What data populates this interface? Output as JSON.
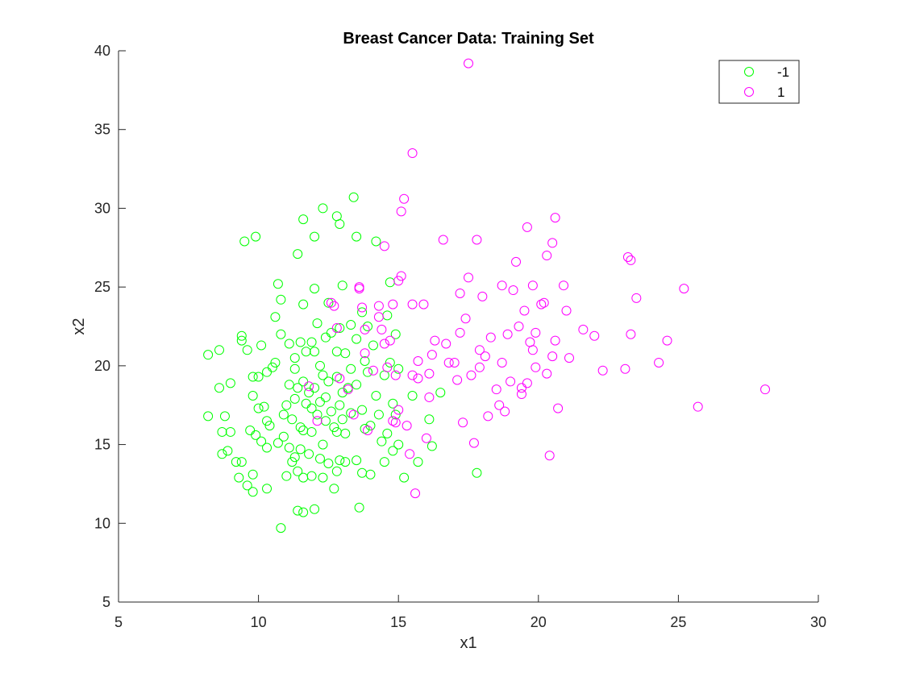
{
  "chart_data": {
    "type": "scatter",
    "title": "Breast Cancer Data: Training Set",
    "xlabel": "x1",
    "ylabel": "x2",
    "xlim": [
      5,
      30
    ],
    "ylim": [
      5,
      40
    ],
    "xticks": [
      5,
      10,
      15,
      20,
      25,
      30
    ],
    "yticks": [
      5,
      10,
      15,
      20,
      25,
      30,
      35,
      40
    ],
    "grid": false,
    "legend_position": "top-right",
    "marker": "open-circle",
    "series": [
      {
        "name": "-1",
        "color": "#00ff00",
        "points": [
          [
            8.2,
            20.7
          ],
          [
            8.2,
            16.8
          ],
          [
            8.6,
            21.0
          ],
          [
            8.6,
            18.6
          ],
          [
            8.7,
            14.4
          ],
          [
            8.7,
            15.8
          ],
          [
            8.8,
            16.8
          ],
          [
            8.9,
            14.6
          ],
          [
            9.0,
            15.8
          ],
          [
            9.0,
            18.9
          ],
          [
            9.2,
            13.9
          ],
          [
            9.3,
            12.9
          ],
          [
            9.4,
            13.9
          ],
          [
            9.4,
            21.9
          ],
          [
            9.4,
            21.6
          ],
          [
            9.5,
            27.9
          ],
          [
            9.6,
            21.0
          ],
          [
            9.6,
            12.4
          ],
          [
            9.7,
            15.9
          ],
          [
            9.8,
            19.3
          ],
          [
            9.8,
            18.1
          ],
          [
            9.8,
            13.1
          ],
          [
            9.8,
            12.0
          ],
          [
            9.9,
            28.2
          ],
          [
            9.9,
            15.6
          ],
          [
            10.0,
            19.3
          ],
          [
            10.0,
            17.3
          ],
          [
            10.1,
            21.3
          ],
          [
            10.1,
            15.2
          ],
          [
            10.2,
            17.4
          ],
          [
            10.3,
            19.6
          ],
          [
            10.3,
            16.5
          ],
          [
            10.3,
            14.8
          ],
          [
            10.3,
            12.2
          ],
          [
            10.4,
            16.2
          ],
          [
            10.5,
            19.9
          ],
          [
            10.6,
            23.1
          ],
          [
            10.6,
            20.2
          ],
          [
            10.7,
            25.2
          ],
          [
            10.7,
            15.1
          ],
          [
            10.8,
            24.2
          ],
          [
            10.8,
            22.0
          ],
          [
            10.8,
            9.7
          ],
          [
            10.9,
            16.9
          ],
          [
            10.9,
            15.5
          ],
          [
            11.0,
            17.5
          ],
          [
            11.0,
            13.0
          ],
          [
            11.1,
            21.4
          ],
          [
            11.1,
            18.8
          ],
          [
            11.1,
            14.8
          ],
          [
            11.2,
            16.6
          ],
          [
            11.2,
            13.9
          ],
          [
            11.3,
            20.5
          ],
          [
            11.3,
            19.8
          ],
          [
            11.3,
            17.9
          ],
          [
            11.3,
            14.2
          ],
          [
            11.4,
            27.1
          ],
          [
            11.4,
            18.6
          ],
          [
            11.4,
            13.3
          ],
          [
            11.4,
            10.8
          ],
          [
            11.5,
            21.5
          ],
          [
            11.5,
            16.1
          ],
          [
            11.5,
            14.7
          ],
          [
            11.6,
            29.3
          ],
          [
            11.6,
            23.9
          ],
          [
            11.6,
            19.0
          ],
          [
            11.6,
            15.9
          ],
          [
            11.6,
            12.9
          ],
          [
            11.6,
            10.7
          ],
          [
            11.7,
            20.9
          ],
          [
            11.7,
            17.6
          ],
          [
            11.8,
            18.3
          ],
          [
            11.8,
            14.4
          ],
          [
            11.9,
            21.5
          ],
          [
            11.9,
            17.3
          ],
          [
            11.9,
            15.8
          ],
          [
            11.9,
            13.0
          ],
          [
            12.0,
            28.2
          ],
          [
            12.0,
            24.9
          ],
          [
            12.0,
            20.9
          ],
          [
            12.0,
            18.6
          ],
          [
            12.0,
            10.9
          ],
          [
            12.1,
            22.7
          ],
          [
            12.1,
            16.9
          ],
          [
            12.2,
            20.0
          ],
          [
            12.2,
            17.7
          ],
          [
            12.2,
            14.1
          ],
          [
            12.3,
            30.0
          ],
          [
            12.3,
            19.4
          ],
          [
            12.3,
            15.0
          ],
          [
            12.3,
            12.9
          ],
          [
            12.4,
            21.8
          ],
          [
            12.4,
            18.0
          ],
          [
            12.4,
            16.5
          ],
          [
            12.5,
            24.0
          ],
          [
            12.5,
            19.0
          ],
          [
            12.5,
            13.8
          ],
          [
            12.6,
            22.1
          ],
          [
            12.6,
            17.1
          ],
          [
            12.7,
            16.1
          ],
          [
            12.7,
            12.2
          ],
          [
            12.8,
            29.5
          ],
          [
            12.8,
            20.9
          ],
          [
            12.8,
            19.3
          ],
          [
            12.8,
            15.8
          ],
          [
            12.8,
            13.3
          ],
          [
            12.9,
            29.0
          ],
          [
            12.9,
            22.4
          ],
          [
            12.9,
            17.5
          ],
          [
            12.9,
            14.0
          ],
          [
            13.0,
            25.1
          ],
          [
            13.0,
            18.3
          ],
          [
            13.0,
            16.6
          ],
          [
            13.1,
            20.8
          ],
          [
            13.1,
            15.7
          ],
          [
            13.1,
            13.9
          ],
          [
            13.2,
            18.6
          ],
          [
            13.3,
            22.6
          ],
          [
            13.3,
            19.8
          ],
          [
            13.3,
            17.0
          ],
          [
            13.4,
            30.7
          ],
          [
            13.5,
            28.2
          ],
          [
            13.5,
            21.7
          ],
          [
            13.5,
            18.8
          ],
          [
            13.5,
            14.0
          ],
          [
            13.6,
            11.0
          ],
          [
            13.7,
            23.4
          ],
          [
            13.7,
            17.2
          ],
          [
            13.7,
            13.2
          ],
          [
            13.8,
            20.3
          ],
          [
            13.8,
            16.0
          ],
          [
            13.9,
            22.5
          ],
          [
            13.9,
            19.6
          ],
          [
            14.0,
            16.2
          ],
          [
            14.0,
            13.1
          ],
          [
            14.1,
            21.3
          ],
          [
            14.2,
            27.9
          ],
          [
            14.2,
            18.1
          ],
          [
            14.3,
            16.9
          ],
          [
            14.4,
            15.2
          ],
          [
            14.5,
            19.4
          ],
          [
            14.5,
            13.9
          ],
          [
            14.6,
            23.2
          ],
          [
            14.6,
            15.7
          ],
          [
            14.7,
            25.3
          ],
          [
            14.7,
            20.2
          ],
          [
            14.8,
            17.6
          ],
          [
            14.8,
            14.6
          ],
          [
            14.9,
            22.0
          ],
          [
            14.9,
            16.9
          ],
          [
            15.0,
            15.0
          ],
          [
            15.0,
            19.8
          ],
          [
            15.2,
            12.9
          ],
          [
            15.5,
            18.1
          ],
          [
            15.7,
            13.9
          ],
          [
            16.1,
            16.6
          ],
          [
            16.2,
            14.9
          ],
          [
            16.5,
            18.3
          ],
          [
            17.8,
            13.2
          ]
        ]
      },
      {
        "name": "1",
        "color": "#ff00ff",
        "points": [
          [
            11.8,
            18.7
          ],
          [
            12.1,
            16.5
          ],
          [
            12.6,
            24.0
          ],
          [
            12.7,
            23.8
          ],
          [
            12.8,
            22.4
          ],
          [
            12.9,
            19.2
          ],
          [
            13.2,
            18.5
          ],
          [
            13.4,
            16.9
          ],
          [
            13.6,
            24.9
          ],
          [
            13.6,
            25.0
          ],
          [
            13.7,
            23.7
          ],
          [
            13.8,
            22.3
          ],
          [
            13.8,
            20.8
          ],
          [
            13.9,
            15.9
          ],
          [
            14.1,
            19.7
          ],
          [
            14.3,
            23.1
          ],
          [
            14.3,
            23.8
          ],
          [
            14.4,
            22.3
          ],
          [
            14.5,
            21.4
          ],
          [
            14.5,
            27.6
          ],
          [
            14.6,
            19.9
          ],
          [
            14.7,
            21.6
          ],
          [
            14.8,
            23.9
          ],
          [
            14.8,
            16.5
          ],
          [
            14.9,
            19.4
          ],
          [
            14.9,
            16.4
          ],
          [
            15.0,
            17.2
          ],
          [
            15.0,
            25.4
          ],
          [
            15.1,
            25.7
          ],
          [
            15.1,
            29.8
          ],
          [
            15.2,
            30.6
          ],
          [
            15.3,
            16.2
          ],
          [
            15.4,
            14.4
          ],
          [
            15.5,
            33.5
          ],
          [
            15.5,
            23.9
          ],
          [
            15.5,
            19.4
          ],
          [
            15.6,
            11.9
          ],
          [
            15.7,
            19.2
          ],
          [
            15.7,
            20.3
          ],
          [
            15.9,
            23.9
          ],
          [
            16.0,
            15.4
          ],
          [
            16.1,
            18.0
          ],
          [
            16.1,
            19.5
          ],
          [
            16.2,
            20.7
          ],
          [
            16.3,
            21.6
          ],
          [
            16.6,
            28.0
          ],
          [
            16.7,
            21.4
          ],
          [
            16.8,
            20.2
          ],
          [
            17.0,
            20.2
          ],
          [
            17.1,
            19.1
          ],
          [
            17.2,
            24.6
          ],
          [
            17.2,
            22.1
          ],
          [
            17.3,
            16.4
          ],
          [
            17.4,
            23.0
          ],
          [
            17.5,
            39.2
          ],
          [
            17.5,
            25.6
          ],
          [
            17.6,
            19.4
          ],
          [
            17.7,
            15.1
          ],
          [
            17.8,
            28.0
          ],
          [
            17.9,
            21.0
          ],
          [
            17.9,
            19.9
          ],
          [
            18.0,
            24.4
          ],
          [
            18.1,
            20.6
          ],
          [
            18.2,
            16.8
          ],
          [
            18.3,
            21.8
          ],
          [
            18.5,
            18.5
          ],
          [
            18.6,
            17.5
          ],
          [
            18.7,
            25.1
          ],
          [
            18.7,
            20.2
          ],
          [
            18.8,
            17.1
          ],
          [
            18.9,
            22.0
          ],
          [
            19.0,
            19.0
          ],
          [
            19.1,
            24.8
          ],
          [
            19.2,
            26.6
          ],
          [
            19.3,
            22.5
          ],
          [
            19.4,
            18.6
          ],
          [
            19.4,
            18.2
          ],
          [
            19.5,
            23.5
          ],
          [
            19.6,
            18.9
          ],
          [
            19.6,
            28.8
          ],
          [
            19.7,
            21.5
          ],
          [
            19.8,
            25.1
          ],
          [
            19.8,
            21.0
          ],
          [
            19.9,
            22.1
          ],
          [
            19.9,
            19.9
          ],
          [
            20.1,
            23.9
          ],
          [
            20.2,
            24.0
          ],
          [
            20.3,
            27.0
          ],
          [
            20.3,
            19.5
          ],
          [
            20.4,
            14.3
          ],
          [
            20.5,
            27.8
          ],
          [
            20.5,
            20.6
          ],
          [
            20.6,
            29.4
          ],
          [
            20.6,
            21.6
          ],
          [
            20.7,
            17.3
          ],
          [
            20.9,
            25.1
          ],
          [
            21.0,
            23.5
          ],
          [
            21.1,
            20.5
          ],
          [
            21.6,
            22.3
          ],
          [
            22.0,
            21.9
          ],
          [
            22.3,
            19.7
          ],
          [
            23.1,
            19.8
          ],
          [
            23.2,
            26.9
          ],
          [
            23.3,
            22.0
          ],
          [
            23.3,
            26.7
          ],
          [
            23.5,
            24.3
          ],
          [
            24.3,
            20.2
          ],
          [
            24.6,
            21.6
          ],
          [
            25.2,
            24.9
          ],
          [
            25.7,
            17.4
          ],
          [
            28.1,
            18.5
          ]
        ]
      }
    ]
  }
}
